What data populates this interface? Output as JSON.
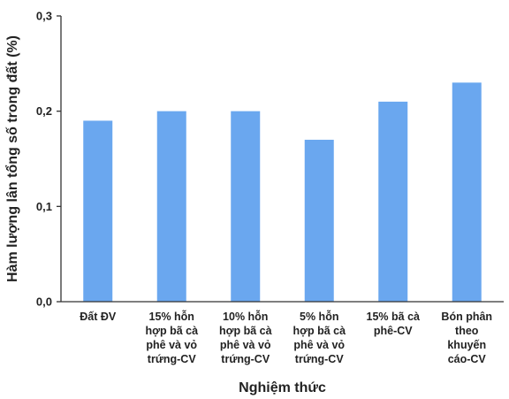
{
  "chart_data": {
    "type": "bar",
    "title": "",
    "xlabel": "Nghiệm thức",
    "ylabel": "Hàm lượng lân tổng số trong đất (%)",
    "ylim": [
      0,
      0.3
    ],
    "yticks": [
      "0,0",
      "0,1",
      "0,2",
      "0,3"
    ],
    "categories": [
      [
        "Đất ĐV"
      ],
      [
        "15% hỗn",
        "hợp bã cà",
        "phê và vỏ",
        "trứng-CV"
      ],
      [
        "10% hỗn",
        "hợp bã cà",
        "phê và vỏ",
        "trứng-CV"
      ],
      [
        "5% hỗn",
        "hợp bã cà",
        "phê và vỏ",
        "trứng-CV"
      ],
      [
        "15% bã cà",
        "phê-CV"
      ],
      [
        "Bón phân",
        "theo",
        "khuyến",
        "cáo-CV"
      ]
    ],
    "values": [
      0.19,
      0.2,
      0.2,
      0.17,
      0.21,
      0.23
    ],
    "bar_color": "#6aa7ef",
    "grid": false,
    "legend": "none"
  }
}
